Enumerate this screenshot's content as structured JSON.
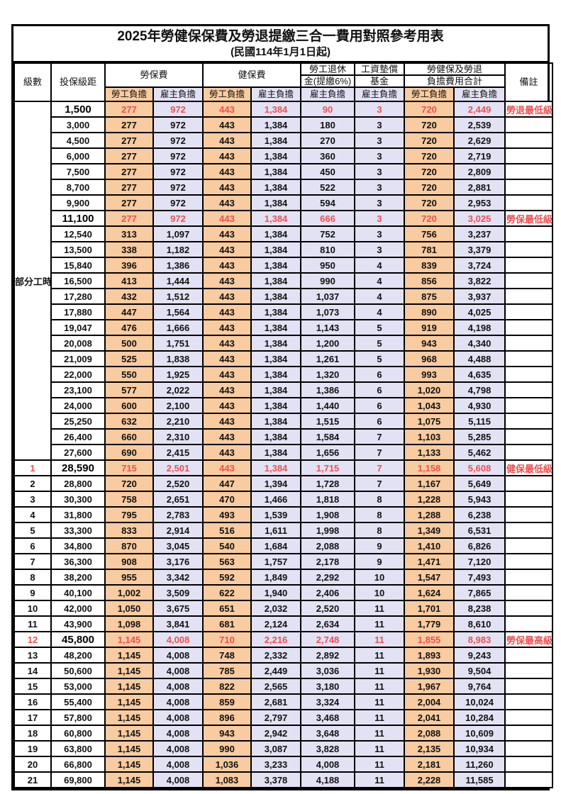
{
  "title": "2025年勞健保保費及勞退提繳三合一費用對照參考用表",
  "subtitle": "(民國114年1月1日起)",
  "colors": {
    "employee_col_bg": "#F8CBA0",
    "employer_col_bg": "#E2E2F4",
    "highlight_text": "#F05050",
    "grid_line": "#000000"
  },
  "header": {
    "level": "級數",
    "bracket": "投保級距",
    "labor_insurance": "勞保費",
    "health_insurance": "健保費",
    "pension_line1": "勞工退休",
    "pension_line2": "金(提繳6%)",
    "wage_fund_line1": "工資墊償",
    "wage_fund_line2": "基金",
    "total_line1": "勞健保及勞退",
    "total_line2": "負擔費用合計",
    "remark": "備註",
    "employee": "勞工負擔",
    "employer": "雇主負擔"
  },
  "part_time_label": "部分工時",
  "table": {
    "rows": [
      {
        "level": null,
        "bracket": "1,500",
        "lb_emp": "277",
        "lb_er": "972",
        "hb_emp": "443",
        "hb_er": "1,384",
        "pension": "90",
        "wage": "3",
        "tot_emp": "720",
        "tot_er": "2,449",
        "remark": "勞退最低級距",
        "highlight": true
      },
      {
        "level": null,
        "bracket": "3,000",
        "lb_emp": "277",
        "lb_er": "972",
        "hb_emp": "443",
        "hb_er": "1,384",
        "pension": "180",
        "wage": "3",
        "tot_emp": "720",
        "tot_er": "2,539",
        "remark": "",
        "highlight": false
      },
      {
        "level": null,
        "bracket": "4,500",
        "lb_emp": "277",
        "lb_er": "972",
        "hb_emp": "443",
        "hb_er": "1,384",
        "pension": "270",
        "wage": "3",
        "tot_emp": "720",
        "tot_er": "2,629",
        "remark": "",
        "highlight": false
      },
      {
        "level": null,
        "bracket": "6,000",
        "lb_emp": "277",
        "lb_er": "972",
        "hb_emp": "443",
        "hb_er": "1,384",
        "pension": "360",
        "wage": "3",
        "tot_emp": "720",
        "tot_er": "2,719",
        "remark": "",
        "highlight": false
      },
      {
        "level": null,
        "bracket": "7,500",
        "lb_emp": "277",
        "lb_er": "972",
        "hb_emp": "443",
        "hb_er": "1,384",
        "pension": "450",
        "wage": "3",
        "tot_emp": "720",
        "tot_er": "2,809",
        "remark": "",
        "highlight": false
      },
      {
        "level": null,
        "bracket": "8,700",
        "lb_emp": "277",
        "lb_er": "972",
        "hb_emp": "443",
        "hb_er": "1,384",
        "pension": "522",
        "wage": "3",
        "tot_emp": "720",
        "tot_er": "2,881",
        "remark": "",
        "highlight": false
      },
      {
        "level": null,
        "bracket": "9,900",
        "lb_emp": "277",
        "lb_er": "972",
        "hb_emp": "443",
        "hb_er": "1,384",
        "pension": "594",
        "wage": "3",
        "tot_emp": "720",
        "tot_er": "2,953",
        "remark": "",
        "highlight": false
      },
      {
        "level": null,
        "bracket": "11,100",
        "lb_emp": "277",
        "lb_er": "972",
        "hb_emp": "443",
        "hb_er": "1,384",
        "pension": "666",
        "wage": "3",
        "tot_emp": "720",
        "tot_er": "3,025",
        "remark": "勞保最低級距",
        "highlight": true
      },
      {
        "level": null,
        "bracket": "12,540",
        "lb_emp": "313",
        "lb_er": "1,097",
        "hb_emp": "443",
        "hb_er": "1,384",
        "pension": "752",
        "wage": "3",
        "tot_emp": "756",
        "tot_er": "3,237",
        "remark": "",
        "highlight": false
      },
      {
        "level": null,
        "bracket": "13,500",
        "lb_emp": "338",
        "lb_er": "1,182",
        "hb_emp": "443",
        "hb_er": "1,384",
        "pension": "810",
        "wage": "3",
        "tot_emp": "781",
        "tot_er": "3,379",
        "remark": "",
        "highlight": false
      },
      {
        "level": null,
        "bracket": "15,840",
        "lb_emp": "396",
        "lb_er": "1,386",
        "hb_emp": "443",
        "hb_er": "1,384",
        "pension": "950",
        "wage": "4",
        "tot_emp": "839",
        "tot_er": "3,724",
        "remark": "",
        "highlight": false
      },
      {
        "level": null,
        "bracket": "16,500",
        "lb_emp": "413",
        "lb_er": "1,444",
        "hb_emp": "443",
        "hb_er": "1,384",
        "pension": "990",
        "wage": "4",
        "tot_emp": "856",
        "tot_er": "3,822",
        "remark": "",
        "highlight": false
      },
      {
        "level": null,
        "bracket": "17,280",
        "lb_emp": "432",
        "lb_er": "1,512",
        "hb_emp": "443",
        "hb_er": "1,384",
        "pension": "1,037",
        "wage": "4",
        "tot_emp": "875",
        "tot_er": "3,937",
        "remark": "",
        "highlight": false
      },
      {
        "level": null,
        "bracket": "17,880",
        "lb_emp": "447",
        "lb_er": "1,564",
        "hb_emp": "443",
        "hb_er": "1,384",
        "pension": "1,073",
        "wage": "4",
        "tot_emp": "890",
        "tot_er": "4,025",
        "remark": "",
        "highlight": false
      },
      {
        "level": null,
        "bracket": "19,047",
        "lb_emp": "476",
        "lb_er": "1,666",
        "hb_emp": "443",
        "hb_er": "1,384",
        "pension": "1,143",
        "wage": "5",
        "tot_emp": "919",
        "tot_er": "4,198",
        "remark": "",
        "highlight": false
      },
      {
        "level": null,
        "bracket": "20,008",
        "lb_emp": "500",
        "lb_er": "1,751",
        "hb_emp": "443",
        "hb_er": "1,384",
        "pension": "1,200",
        "wage": "5",
        "tot_emp": "943",
        "tot_er": "4,340",
        "remark": "",
        "highlight": false
      },
      {
        "level": null,
        "bracket": "21,009",
        "lb_emp": "525",
        "lb_er": "1,838",
        "hb_emp": "443",
        "hb_er": "1,384",
        "pension": "1,261",
        "wage": "5",
        "tot_emp": "968",
        "tot_er": "4,488",
        "remark": "",
        "highlight": false
      },
      {
        "level": null,
        "bracket": "22,000",
        "lb_emp": "550",
        "lb_er": "1,925",
        "hb_emp": "443",
        "hb_er": "1,384",
        "pension": "1,320",
        "wage": "6",
        "tot_emp": "993",
        "tot_er": "4,635",
        "remark": "",
        "highlight": false
      },
      {
        "level": null,
        "bracket": "23,100",
        "lb_emp": "577",
        "lb_er": "2,022",
        "hb_emp": "443",
        "hb_er": "1,384",
        "pension": "1,386",
        "wage": "6",
        "tot_emp": "1,020",
        "tot_er": "4,798",
        "remark": "",
        "highlight": false
      },
      {
        "level": null,
        "bracket": "24,000",
        "lb_emp": "600",
        "lb_er": "2,100",
        "hb_emp": "443",
        "hb_er": "1,384",
        "pension": "1,440",
        "wage": "6",
        "tot_emp": "1,043",
        "tot_er": "4,930",
        "remark": "",
        "highlight": false
      },
      {
        "level": null,
        "bracket": "25,250",
        "lb_emp": "632",
        "lb_er": "2,210",
        "hb_emp": "443",
        "hb_er": "1,384",
        "pension": "1,515",
        "wage": "6",
        "tot_emp": "1,075",
        "tot_er": "5,115",
        "remark": "",
        "highlight": false
      },
      {
        "level": null,
        "bracket": "26,400",
        "lb_emp": "660",
        "lb_er": "2,310",
        "hb_emp": "443",
        "hb_er": "1,384",
        "pension": "1,584",
        "wage": "7",
        "tot_emp": "1,103",
        "tot_er": "5,285",
        "remark": "",
        "highlight": false
      },
      {
        "level": null,
        "bracket": "27,600",
        "lb_emp": "690",
        "lb_er": "2,415",
        "hb_emp": "443",
        "hb_er": "1,384",
        "pension": "1,656",
        "wage": "7",
        "tot_emp": "1,133",
        "tot_er": "5,462",
        "remark": "",
        "highlight": false
      },
      {
        "level": "1",
        "bracket": "28,590",
        "lb_emp": "715",
        "lb_er": "2,501",
        "hb_emp": "443",
        "hb_er": "1,384",
        "pension": "1,715",
        "wage": "7",
        "tot_emp": "1,158",
        "tot_er": "5,608",
        "remark": "健保最低級距",
        "highlight": true
      },
      {
        "level": "2",
        "bracket": "28,800",
        "lb_emp": "720",
        "lb_er": "2,520",
        "hb_emp": "447",
        "hb_er": "1,394",
        "pension": "1,728",
        "wage": "7",
        "tot_emp": "1,167",
        "tot_er": "5,649",
        "remark": "",
        "highlight": false
      },
      {
        "level": "3",
        "bracket": "30,300",
        "lb_emp": "758",
        "lb_er": "2,651",
        "hb_emp": "470",
        "hb_er": "1,466",
        "pension": "1,818",
        "wage": "8",
        "tot_emp": "1,228",
        "tot_er": "5,943",
        "remark": "",
        "highlight": false
      },
      {
        "level": "4",
        "bracket": "31,800",
        "lb_emp": "795",
        "lb_er": "2,783",
        "hb_emp": "493",
        "hb_er": "1,539",
        "pension": "1,908",
        "wage": "8",
        "tot_emp": "1,288",
        "tot_er": "6,238",
        "remark": "",
        "highlight": false
      },
      {
        "level": "5",
        "bracket": "33,300",
        "lb_emp": "833",
        "lb_er": "2,914",
        "hb_emp": "516",
        "hb_er": "1,611",
        "pension": "1,998",
        "wage": "8",
        "tot_emp": "1,349",
        "tot_er": "6,531",
        "remark": "",
        "highlight": false
      },
      {
        "level": "6",
        "bracket": "34,800",
        "lb_emp": "870",
        "lb_er": "3,045",
        "hb_emp": "540",
        "hb_er": "1,684",
        "pension": "2,088",
        "wage": "9",
        "tot_emp": "1,410",
        "tot_er": "6,826",
        "remark": "",
        "highlight": false
      },
      {
        "level": "7",
        "bracket": "36,300",
        "lb_emp": "908",
        "lb_er": "3,176",
        "hb_emp": "563",
        "hb_er": "1,757",
        "pension": "2,178",
        "wage": "9",
        "tot_emp": "1,471",
        "tot_er": "7,120",
        "remark": "",
        "highlight": false
      },
      {
        "level": "8",
        "bracket": "38,200",
        "lb_emp": "955",
        "lb_er": "3,342",
        "hb_emp": "592",
        "hb_er": "1,849",
        "pension": "2,292",
        "wage": "10",
        "tot_emp": "1,547",
        "tot_er": "7,493",
        "remark": "",
        "highlight": false
      },
      {
        "level": "9",
        "bracket": "40,100",
        "lb_emp": "1,002",
        "lb_er": "3,509",
        "hb_emp": "622",
        "hb_er": "1,940",
        "pension": "2,406",
        "wage": "10",
        "tot_emp": "1,624",
        "tot_er": "7,865",
        "remark": "",
        "highlight": false
      },
      {
        "level": "10",
        "bracket": "42,000",
        "lb_emp": "1,050",
        "lb_er": "3,675",
        "hb_emp": "651",
        "hb_er": "2,032",
        "pension": "2,520",
        "wage": "11",
        "tot_emp": "1,701",
        "tot_er": "8,238",
        "remark": "",
        "highlight": false
      },
      {
        "level": "11",
        "bracket": "43,900",
        "lb_emp": "1,098",
        "lb_er": "3,841",
        "hb_emp": "681",
        "hb_er": "2,124",
        "pension": "2,634",
        "wage": "11",
        "tot_emp": "1,779",
        "tot_er": "8,610",
        "remark": "",
        "highlight": false
      },
      {
        "level": "12",
        "bracket": "45,800",
        "lb_emp": "1,145",
        "lb_er": "4,008",
        "hb_emp": "710",
        "hb_er": "2,216",
        "pension": "2,748",
        "wage": "11",
        "tot_emp": "1,855",
        "tot_er": "8,983",
        "remark": "勞保最高級距",
        "highlight": true
      },
      {
        "level": "13",
        "bracket": "48,200",
        "lb_emp": "1,145",
        "lb_er": "4,008",
        "hb_emp": "748",
        "hb_er": "2,332",
        "pension": "2,892",
        "wage": "11",
        "tot_emp": "1,893",
        "tot_er": "9,243",
        "remark": "",
        "highlight": false
      },
      {
        "level": "14",
        "bracket": "50,600",
        "lb_emp": "1,145",
        "lb_er": "4,008",
        "hb_emp": "785",
        "hb_er": "2,449",
        "pension": "3,036",
        "wage": "11",
        "tot_emp": "1,930",
        "tot_er": "9,504",
        "remark": "",
        "highlight": false
      },
      {
        "level": "15",
        "bracket": "53,000",
        "lb_emp": "1,145",
        "lb_er": "4,008",
        "hb_emp": "822",
        "hb_er": "2,565",
        "pension": "3,180",
        "wage": "11",
        "tot_emp": "1,967",
        "tot_er": "9,764",
        "remark": "",
        "highlight": false
      },
      {
        "level": "16",
        "bracket": "55,400",
        "lb_emp": "1,145",
        "lb_er": "4,008",
        "hb_emp": "859",
        "hb_er": "2,681",
        "pension": "3,324",
        "wage": "11",
        "tot_emp": "2,004",
        "tot_er": "10,024",
        "remark": "",
        "highlight": false
      },
      {
        "level": "17",
        "bracket": "57,800",
        "lb_emp": "1,145",
        "lb_er": "4,008",
        "hb_emp": "896",
        "hb_er": "2,797",
        "pension": "3,468",
        "wage": "11",
        "tot_emp": "2,041",
        "tot_er": "10,284",
        "remark": "",
        "highlight": false
      },
      {
        "level": "18",
        "bracket": "60,800",
        "lb_emp": "1,145",
        "lb_er": "4,008",
        "hb_emp": "943",
        "hb_er": "2,942",
        "pension": "3,648",
        "wage": "11",
        "tot_emp": "2,088",
        "tot_er": "10,609",
        "remark": "",
        "highlight": false
      },
      {
        "level": "19",
        "bracket": "63,800",
        "lb_emp": "1,145",
        "lb_er": "4,008",
        "hb_emp": "990",
        "hb_er": "3,087",
        "pension": "3,828",
        "wage": "11",
        "tot_emp": "2,135",
        "tot_er": "10,934",
        "remark": "",
        "highlight": false
      },
      {
        "level": "20",
        "bracket": "66,800",
        "lb_emp": "1,145",
        "lb_er": "4,008",
        "hb_emp": "1,036",
        "hb_er": "3,233",
        "pension": "4,008",
        "wage": "11",
        "tot_emp": "2,181",
        "tot_er": "11,260",
        "remark": "",
        "highlight": false
      },
      {
        "level": "21",
        "bracket": "69,800",
        "lb_emp": "1,145",
        "lb_er": "4,008",
        "hb_emp": "1,083",
        "hb_er": "3,378",
        "pension": "4,188",
        "wage": "11",
        "tot_emp": "2,228",
        "tot_er": "11,585",
        "remark": "",
        "highlight": false
      }
    ]
  }
}
